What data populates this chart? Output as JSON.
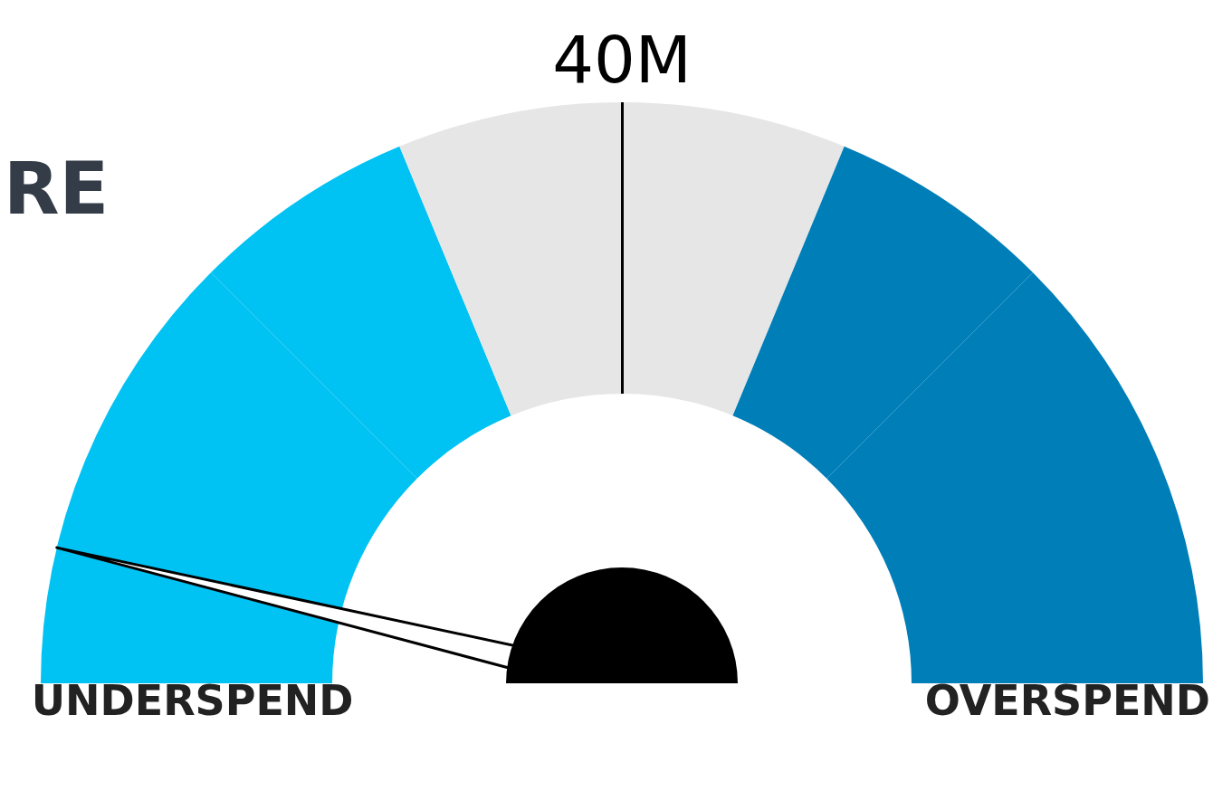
{
  "chart_data": {
    "type": "donut",
    "title": "RE",
    "categories": [
      "UNDERSPEND",
      null,
      null,
      null,
      null,
      "OVERSPEND"
    ],
    "values": [
      25,
      12.5,
      12.5,
      12.5,
      12.5,
      25
    ],
    "colors": [
      "#00c2f3",
      "#00c2f3",
      "#e6e6e6",
      "#e6e6e6",
      "#007eb8",
      "#007eb8"
    ],
    "needle": "UNDERSPEND",
    "annotations": [
      "40M"
    ]
  }
}
